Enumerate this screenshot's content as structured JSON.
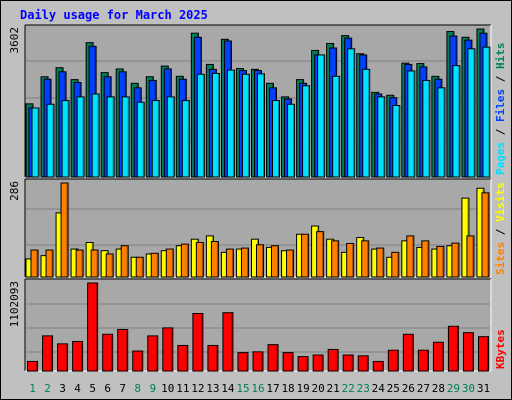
{
  "title": "Daily usage for March 2025",
  "colors": {
    "hits": "#00805c",
    "files": "#0040ff",
    "pages": "#00e0ff",
    "visits": "#ffff00",
    "sites": "#ff8000",
    "kbytes": "#ff0000",
    "weekend_day": "#00805c",
    "weekday_day": "#000000",
    "label_separator": "#000000",
    "bg": "#c0c0c0",
    "panel": "#a8a8a8"
  },
  "chart_data": [
    {
      "type": "bar",
      "panel": "hits-files-pages",
      "categories": [
        "1",
        "2",
        "3",
        "4",
        "5",
        "6",
        "7",
        "8",
        "9",
        "10",
        "11",
        "12",
        "13",
        "14",
        "15",
        "16",
        "17",
        "18",
        "19",
        "20",
        "21",
        "22",
        "23",
        "24",
        "25",
        "26",
        "27",
        "28",
        "29",
        "30",
        "31"
      ],
      "y_max_label": "3602",
      "y_max": 3602,
      "right_labels": [
        "Pages",
        "Files",
        "Hits"
      ],
      "series": [
        {
          "name": "Hits",
          "values": [
            1780,
            2440,
            2660,
            2370,
            3270,
            2540,
            2630,
            2280,
            2440,
            2700,
            2450,
            3500,
            2740,
            3350,
            2640,
            2620,
            2280,
            1950,
            2370,
            3080,
            3250,
            3440,
            3000,
            2060,
            1990,
            2770,
            2760,
            2450,
            3540,
            3400,
            3602
          ]
        },
        {
          "name": "Files",
          "values": [
            1680,
            2380,
            2560,
            2300,
            3180,
            2440,
            2560,
            2170,
            2350,
            2630,
            2380,
            3400,
            2620,
            3310,
            2590,
            2590,
            2170,
            1900,
            2280,
            2970,
            3140,
            3380,
            2970,
            2020,
            1930,
            2740,
            2680,
            2380,
            3430,
            3330,
            3500
          ]
        },
        {
          "name": "Pages",
          "values": [
            1680,
            1770,
            1860,
            1950,
            2020,
            1950,
            1950,
            1820,
            1860,
            1950,
            1860,
            2500,
            2520,
            2600,
            2500,
            2510,
            1860,
            1770,
            2220,
            2970,
            2450,
            3120,
            2620,
            1950,
            1740,
            2580,
            2350,
            2170,
            2710,
            3120,
            3160
          ]
        }
      ]
    },
    {
      "type": "bar",
      "panel": "visits-sites",
      "categories": [
        "1",
        "2",
        "3",
        "4",
        "5",
        "6",
        "7",
        "8",
        "9",
        "10",
        "11",
        "12",
        "13",
        "14",
        "15",
        "16",
        "17",
        "18",
        "19",
        "20",
        "21",
        "22",
        "23",
        "24",
        "25",
        "26",
        "27",
        "28",
        "29",
        "30",
        "31"
      ],
      "y_max_label": "286",
      "y_max": 286,
      "right_labels": [
        "Sites",
        "Visits"
      ],
      "series": [
        {
          "name": "Visits",
          "values": [
            55,
            65,
            195,
            85,
            105,
            80,
            85,
            60,
            70,
            80,
            95,
            115,
            125,
            75,
            85,
            115,
            90,
            80,
            130,
            155,
            115,
            75,
            120,
            85,
            60,
            110,
            90,
            85,
            95,
            240,
            270
          ]
        },
        {
          "name": "Sites",
          "values": [
            82,
            82,
            286,
            82,
            82,
            70,
            95,
            60,
            72,
            85,
            100,
            105,
            108,
            85,
            88,
            98,
            95,
            82,
            130,
            138,
            110,
            102,
            110,
            88,
            75,
            125,
            110,
            93,
            103,
            125,
            256
          ]
        }
      ]
    },
    {
      "type": "bar",
      "panel": "kbytes",
      "categories": [
        "1",
        "2",
        "3",
        "4",
        "5",
        "6",
        "7",
        "8",
        "9",
        "10",
        "11",
        "12",
        "13",
        "14",
        "15",
        "16",
        "17",
        "18",
        "19",
        "20",
        "21",
        "22",
        "23",
        "24",
        "25",
        "26",
        "27",
        "28",
        "29",
        "30",
        "31"
      ],
      "y_max_label": "1102093",
      "y_max": 1102093,
      "right_labels": [
        "KBytes"
      ],
      "series": [
        {
          "name": "KBytes",
          "values": [
            120000,
            440000,
            340000,
            370000,
            1102093,
            460000,
            520000,
            250000,
            440000,
            540000,
            320000,
            720000,
            320000,
            730000,
            230000,
            240000,
            330000,
            230000,
            180000,
            200000,
            270000,
            200000,
            190000,
            120000,
            260000,
            460000,
            260000,
            360000,
            560000,
            480000,
            430000
          ]
        }
      ]
    }
  ],
  "x_axis": {
    "labels": [
      "1",
      "2",
      "3",
      "4",
      "5",
      "6",
      "7",
      "8",
      "9",
      "10",
      "11",
      "12",
      "13",
      "14",
      "15",
      "16",
      "17",
      "18",
      "19",
      "20",
      "21",
      "22",
      "23",
      "24",
      "25",
      "26",
      "27",
      "28",
      "29",
      "30",
      "31"
    ],
    "weekend_days": [
      1,
      2,
      8,
      9,
      15,
      16,
      22,
      23,
      29,
      30
    ]
  }
}
